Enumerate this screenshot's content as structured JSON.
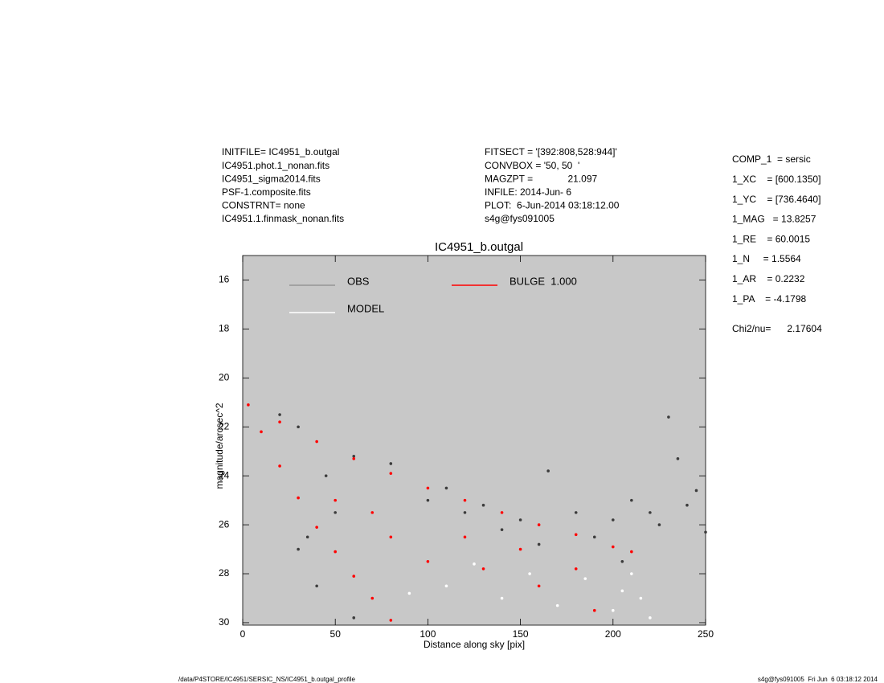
{
  "chart_data": {
    "type": "scatter",
    "title": "IC4951_b.outgal",
    "x_label": "Distance along sky [pix]",
    "y_label": "magnitude/arcsec^2",
    "xlim": [
      0,
      250
    ],
    "ylim": [
      30.1,
      15
    ],
    "xticks": [
      0,
      50,
      100,
      150,
      200,
      250
    ],
    "yticks": [
      16,
      18,
      20,
      22,
      24,
      26,
      28,
      30
    ],
    "background": "#c8c8c8",
    "series": [
      {
        "name": "OBS",
        "color": "#3c3c3c",
        "legend_color": "#969696",
        "x": [
          20,
          30,
          60,
          120,
          150,
          180,
          200,
          220,
          240,
          230,
          235,
          165,
          130,
          100,
          45,
          35,
          40,
          30,
          60,
          140,
          190,
          210,
          245,
          225,
          160,
          205,
          250,
          80,
          110,
          50
        ],
        "y": [
          21.5,
          22,
          23.2,
          25.5,
          25.8,
          25.5,
          25.8,
          25.5,
          25.2,
          21.6,
          23.3,
          23.8,
          25.2,
          25,
          24,
          26.5,
          28.5,
          27,
          29.8,
          26.2,
          26.5,
          25,
          24.6,
          26,
          26.8,
          27.5,
          26.3,
          23.5,
          24.5,
          25.5
        ]
      },
      {
        "name": "MODEL",
        "color": "#ffffff",
        "legend_color": "#ffffff",
        "x": [
          210,
          215,
          220,
          200,
          170,
          140,
          110,
          90,
          205,
          185,
          155,
          125
        ],
        "y": [
          28,
          29,
          29.8,
          29.5,
          29.3,
          29,
          28.5,
          28.8,
          28.7,
          28.2,
          28,
          27.6
        ]
      },
      {
        "name": "BULGE  1.000",
        "color": "#ff0000",
        "legend_color": "#ff0000",
        "x": [
          3,
          20,
          40,
          60,
          80,
          100,
          120,
          140,
          160,
          180,
          200,
          210,
          10,
          20,
          30,
          40,
          50,
          60,
          70,
          80,
          50,
          80,
          100,
          130,
          160,
          190,
          120,
          150,
          180,
          70
        ],
        "y": [
          21.1,
          21.8,
          22.6,
          23.3,
          23.9,
          24.5,
          25,
          25.5,
          26,
          26.4,
          26.9,
          27.1,
          22.2,
          23.6,
          24.9,
          26.1,
          27.1,
          28.1,
          29,
          29.9,
          25,
          26.5,
          27.5,
          27.8,
          28.5,
          29.5,
          26.5,
          27,
          27.8,
          25.5
        ]
      }
    ],
    "info_left": [
      "INITFILE= IC4951_b.outgal",
      "IC4951.phot.1_nonan.fits",
      "IC4951_sigma2014.fits",
      "PSF-1.composite.fits",
      "CONSTRNT= none",
      "IC4951.1.finmask_nonan.fits"
    ],
    "info_middle": [
      "FITSECT = '[392:808,528:944]'",
      "CONVBOX = '50, 50  '",
      "MAGZPT =             21.097",
      "INFILE: 2014-Jun- 6",
      "PLOT:  6-Jun-2014 03:18:12.00",
      "s4g@fys091005"
    ],
    "info_right": [
      "COMP_1  = sersic",
      "1_XC    = [600.1350]",
      "1_YC    = [736.4640]",
      "1_MAG   = 13.8257",
      "1_RE    = 60.0015",
      "1_N     = 1.5564",
      "1_AR    = 0.2232",
      "1_PA    = -4.1798"
    ],
    "chi2": "Chi2/nu=      2.17604",
    "footer_left": "/data/P4STORE/IC4951/SERSIC_NS/IC4951_b.outgal_profile",
    "footer_right": "s4g@fys091005  Fri Jun  6 03:18:12 2014"
  }
}
